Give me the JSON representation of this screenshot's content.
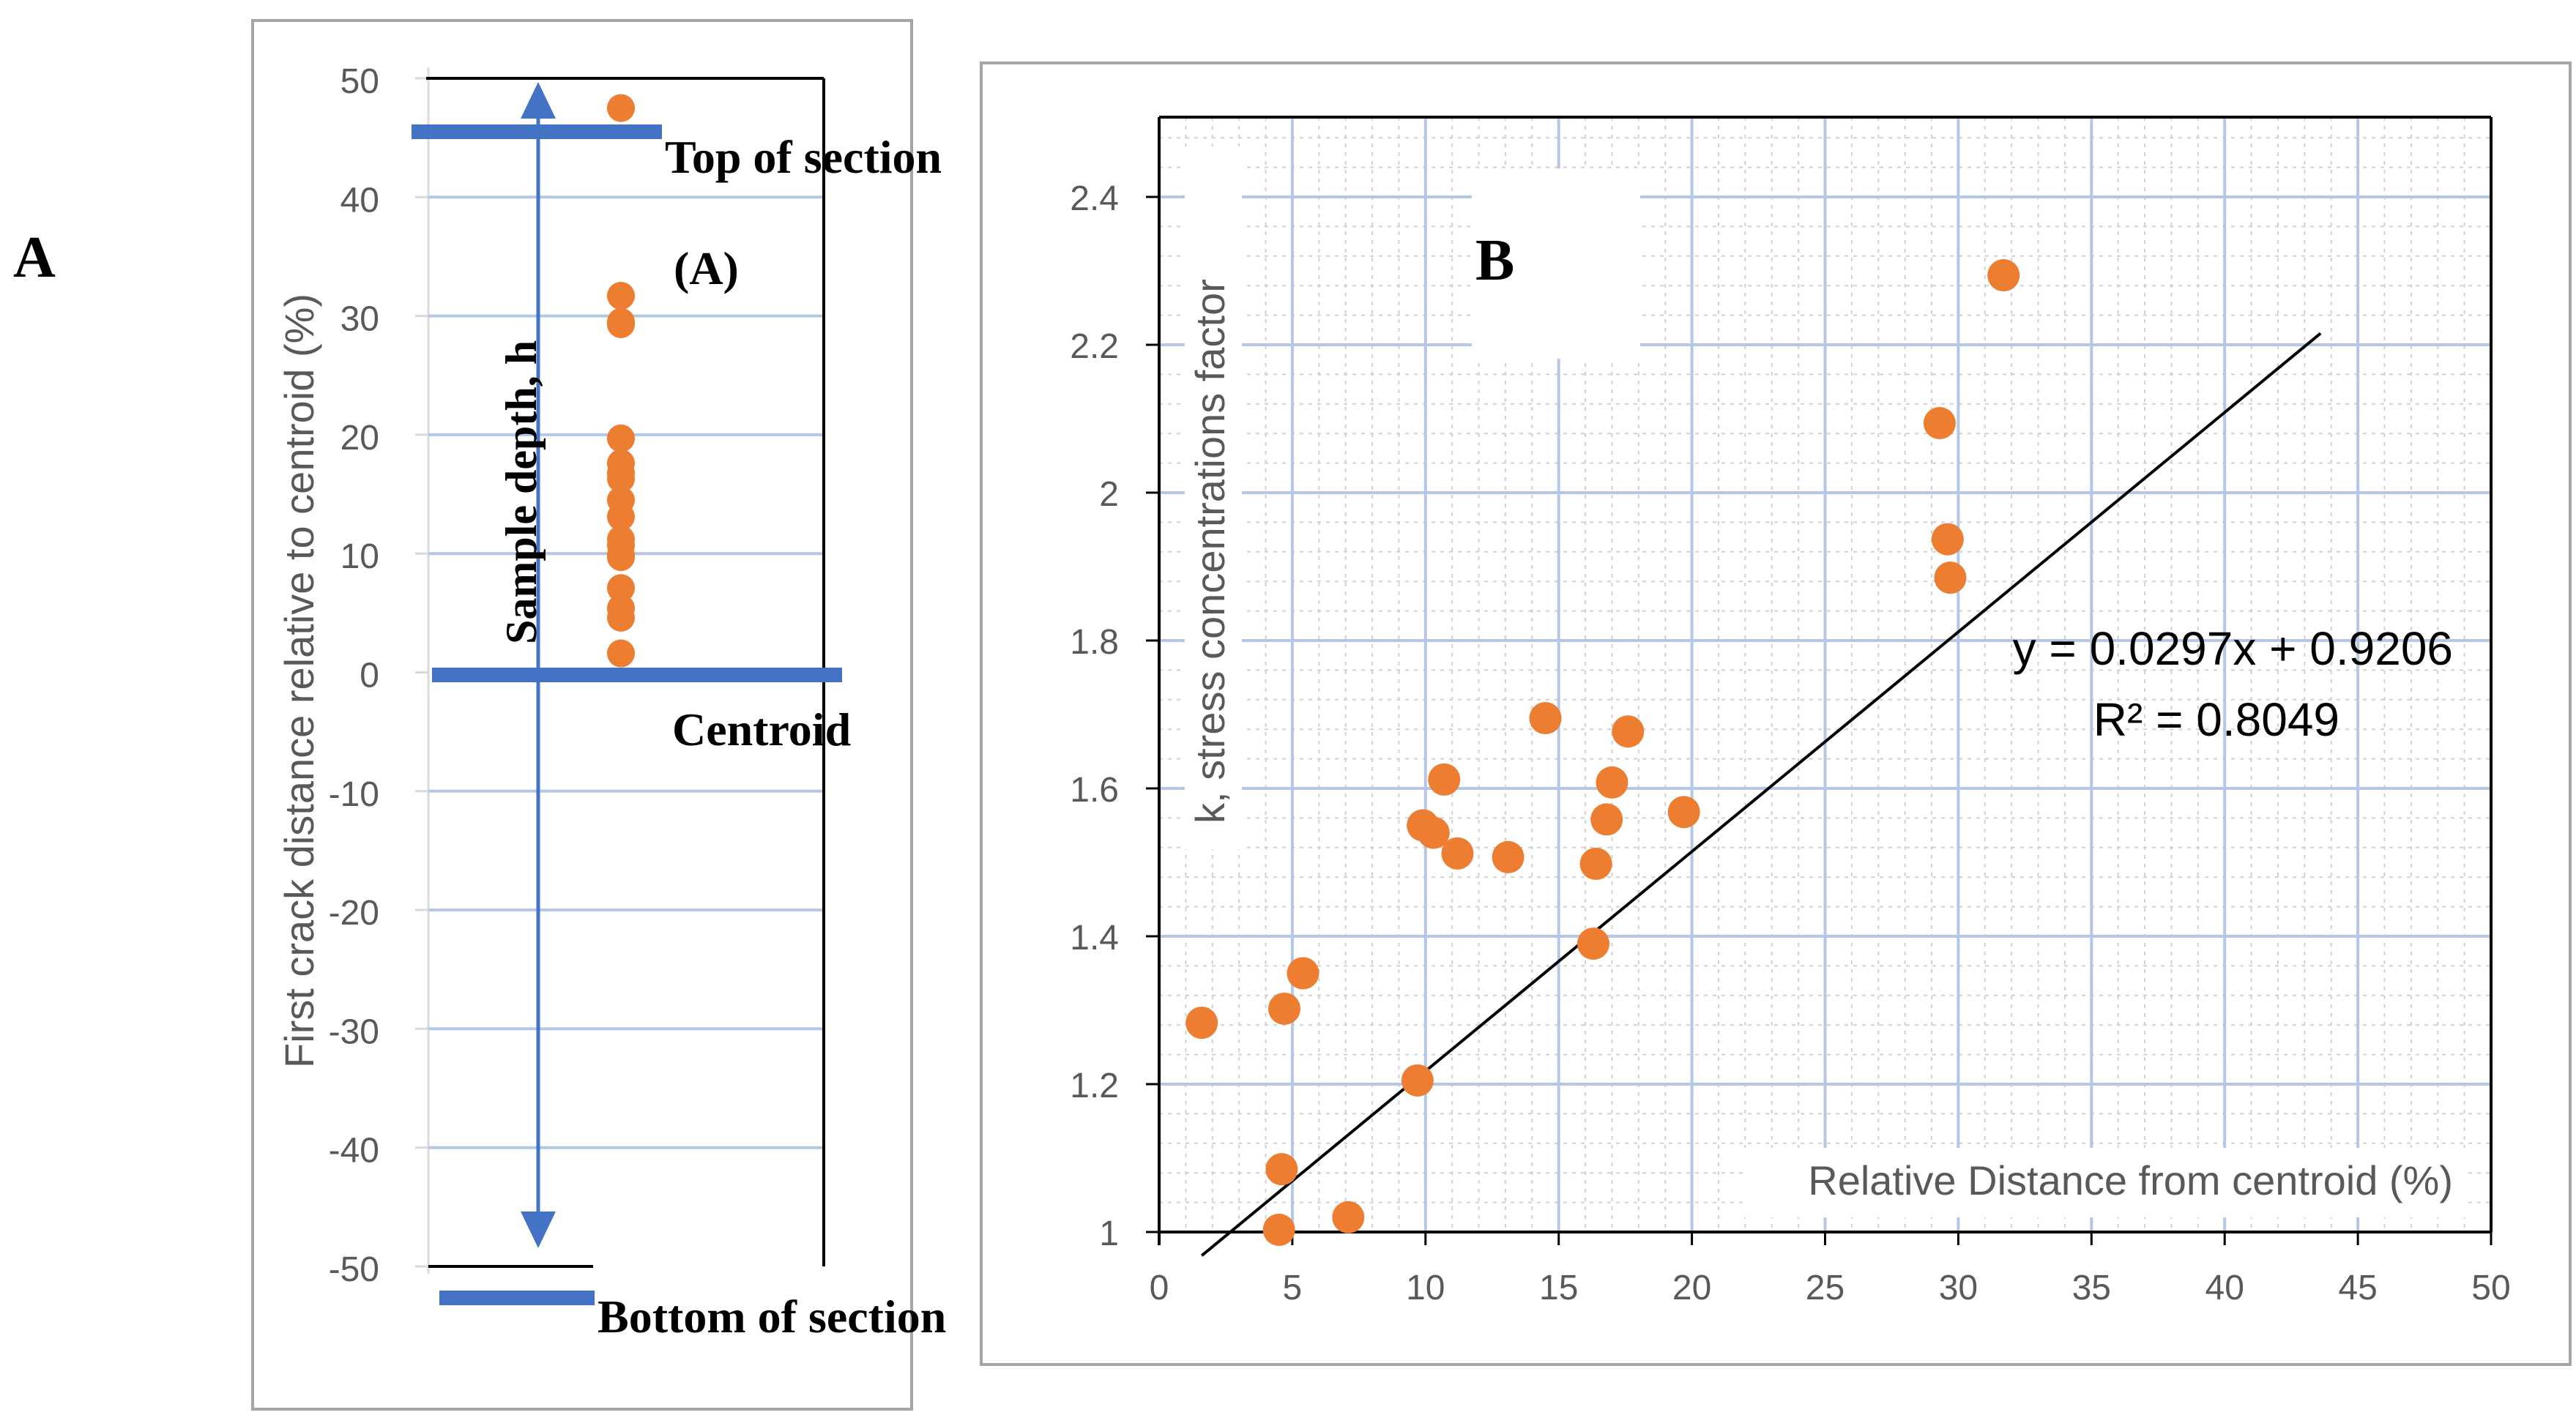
{
  "panel_labels": {
    "outer": "A"
  },
  "colors": {
    "point": "#ED7D31",
    "annotation": "#4472C4",
    "grid": "#B4C7E7",
    "axis_text": "#595959",
    "line": "#000000"
  },
  "chart_data": [
    {
      "id": "A",
      "type": "scatter",
      "title": "(A)",
      "ylabel": "First  crack distance relative to centroid (%)",
      "ylim": [
        -50,
        50
      ],
      "yticks": [
        50,
        40,
        30,
        20,
        10,
        0,
        -10,
        -20,
        -30,
        -40,
        -50
      ],
      "x_category": 1,
      "values": [
        47.5,
        31.7,
        29.5,
        29.3,
        19.7,
        17.6,
        16.8,
        16.3,
        14.5,
        13.1,
        11.2,
        10.7,
        9.9,
        9.7,
        7.1,
        5.4,
        4.6,
        1.6
      ],
      "annotations": {
        "top": "Top of section",
        "centroid": "Centroid",
        "bottom": "Bottom of section",
        "depth": "Sample depth, h"
      }
    },
    {
      "id": "B",
      "type": "scatter",
      "title": "B",
      "xlabel": "Relative Distance from centroid (%)",
      "ylabel": "k, stress concentrations factor",
      "xlim": [
        0,
        50
      ],
      "ylim": [
        1,
        2.5
      ],
      "xticks": [
        0,
        5,
        10,
        15,
        20,
        25,
        30,
        35,
        40,
        45,
        50
      ],
      "yticks": [
        1,
        1.2,
        1.4,
        1.6,
        1.8,
        2,
        2.2,
        2.4
      ],
      "points": [
        [
          1.6,
          1.283
        ],
        [
          4.5,
          1.003
        ],
        [
          4.6,
          1.085
        ],
        [
          4.7,
          1.302
        ],
        [
          5.4,
          1.35
        ],
        [
          7.1,
          1.02
        ],
        [
          9.7,
          1.205
        ],
        [
          9.9,
          1.55
        ],
        [
          10.3,
          1.54
        ],
        [
          10.7,
          1.612
        ],
        [
          11.2,
          1.512
        ],
        [
          13.1,
          1.507
        ],
        [
          14.5,
          1.695
        ],
        [
          16.3,
          1.39
        ],
        [
          16.4,
          1.498
        ],
        [
          16.8,
          1.558
        ],
        [
          17.0,
          1.608
        ],
        [
          17.6,
          1.677
        ],
        [
          19.7,
          1.568
        ],
        [
          29.3,
          2.094
        ],
        [
          29.6,
          1.937
        ],
        [
          29.7,
          1.885
        ],
        [
          31.7,
          2.294
        ]
      ],
      "trendline": {
        "slope": 0.0297,
        "intercept": 0.9206,
        "x_range": [
          1.6,
          43.6
        ]
      },
      "equation": "y = 0.0297x + 0.9206",
      "r_squared": "R² = 0.8049"
    }
  ]
}
